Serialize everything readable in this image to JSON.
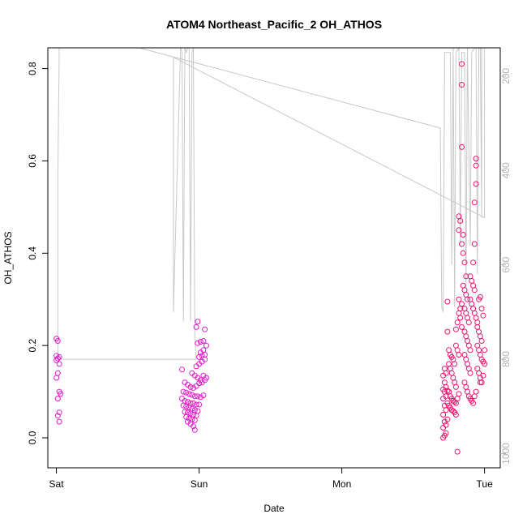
{
  "chart_data": {
    "type": "scatter",
    "title": "ATOM4 Northeast_Pacific_2 OH_ATHOS",
    "xlabel": "Date",
    "ylabel": "OH_ATHOS",
    "x_axis": {
      "range_days": [
        -0.06,
        3.11
      ],
      "ticks": [
        {
          "label": "Sat",
          "day": 0
        },
        {
          "label": "Sun",
          "day": 1
        },
        {
          "label": "Mon",
          "day": 2
        },
        {
          "label": "Tue",
          "day": 3
        }
      ]
    },
    "y_axis": {
      "range": [
        -0.065,
        0.845
      ],
      "ticks": [
        "0.0",
        "0.2",
        "0.4",
        "0.6",
        "0.8"
      ],
      "tick_values": [
        0,
        0.2,
        0.4,
        0.6,
        0.8
      ]
    },
    "right_axis": {
      "label": "",
      "range_top_to_bottom": [
        140,
        1030
      ],
      "ticks": [
        "200",
        "400",
        "600",
        "800",
        "1000"
      ],
      "tick_values": [
        200,
        400,
        600,
        800,
        1000
      ],
      "color": "#b3b3b3"
    },
    "grid": false,
    "legend": "none",
    "colors": {
      "low_altitude": "#e619c8",
      "high_altitude": "#f0146e",
      "pressure_line": "#c8c8c8",
      "axis": "#000000"
    },
    "series": [
      {
        "points_day_value": [
          [
            0.0,
            0.215
          ],
          [
            0.01,
            0.21
          ],
          [
            0.0,
            0.178
          ],
          [
            0.02,
            0.175
          ],
          [
            0.01,
            0.172
          ],
          [
            0.0,
            0.168
          ],
          [
            0.02,
            0.16
          ],
          [
            0.01,
            0.14
          ],
          [
            0.0,
            0.13
          ],
          [
            0.02,
            0.1
          ],
          [
            0.03,
            0.095
          ],
          [
            0.01,
            0.085
          ],
          [
            0.02,
            0.055
          ],
          [
            0.01,
            0.048
          ],
          [
            0.02,
            0.035
          ],
          [
            0.88,
            0.148
          ],
          [
            0.9,
            0.12
          ],
          [
            0.92,
            0.115
          ],
          [
            0.94,
            0.11
          ],
          [
            0.96,
            0.108
          ],
          [
            0.98,
            0.112
          ],
          [
            1.0,
            0.118
          ],
          [
            1.02,
            0.12
          ],
          [
            1.04,
            0.125
          ],
          [
            0.89,
            0.1
          ],
          [
            0.91,
            0.098
          ],
          [
            0.93,
            0.095
          ],
          [
            0.95,
            0.093
          ],
          [
            0.97,
            0.09
          ],
          [
            0.99,
            0.09
          ],
          [
            1.01,
            0.088
          ],
          [
            1.03,
            0.092
          ],
          [
            0.88,
            0.085
          ],
          [
            0.9,
            0.08
          ],
          [
            0.92,
            0.078
          ],
          [
            0.94,
            0.075
          ],
          [
            0.96,
            0.075
          ],
          [
            0.98,
            0.072
          ],
          [
            1.0,
            0.072
          ],
          [
            0.89,
            0.07
          ],
          [
            0.91,
            0.068
          ],
          [
            0.93,
            0.066
          ],
          [
            0.95,
            0.063
          ],
          [
            0.97,
            0.06
          ],
          [
            0.99,
            0.058
          ],
          [
            0.9,
            0.056
          ],
          [
            0.92,
            0.055
          ],
          [
            0.94,
            0.053
          ],
          [
            0.96,
            0.05
          ],
          [
            0.98,
            0.048
          ],
          [
            0.91,
            0.045
          ],
          [
            0.93,
            0.042
          ],
          [
            0.95,
            0.04
          ],
          [
            0.97,
            0.038
          ],
          [
            0.92,
            0.035
          ],
          [
            0.94,
            0.03
          ],
          [
            0.96,
            0.025
          ],
          [
            0.97,
            0.017
          ],
          [
            0.95,
            0.14
          ],
          [
            0.97,
            0.135
          ],
          [
            0.99,
            0.13
          ],
          [
            1.01,
            0.125
          ],
          [
            1.03,
            0.135
          ],
          [
            1.05,
            0.13
          ],
          [
            0.98,
            0.155
          ],
          [
            1.0,
            0.16
          ],
          [
            1.02,
            0.165
          ],
          [
            1.04,
            0.17
          ],
          [
            1.0,
            0.175
          ],
          [
            1.02,
            0.178
          ],
          [
            1.04,
            0.18
          ],
          [
            1.01,
            0.185
          ],
          [
            1.03,
            0.19
          ],
          [
            1.05,
            0.2
          ],
          [
            0.99,
            0.205
          ],
          [
            1.01,
            0.208
          ],
          [
            1.03,
            0.21
          ],
          [
            1.04,
            0.235
          ],
          [
            0.98,
            0.24
          ],
          [
            0.99,
            0.252
          ]
        ]
      },
      {
        "points_day_value": [
          [
            2.71,
            0.0
          ],
          [
            2.72,
            0.005
          ],
          [
            2.73,
            0.01
          ],
          [
            2.71,
            0.022
          ],
          [
            2.73,
            0.028
          ],
          [
            2.72,
            0.035
          ],
          [
            2.74,
            0.04
          ],
          [
            2.71,
            0.05
          ],
          [
            2.73,
            0.06
          ],
          [
            2.72,
            0.07
          ],
          [
            2.74,
            0.075
          ],
          [
            2.71,
            0.085
          ],
          [
            2.73,
            0.09
          ],
          [
            2.72,
            0.1
          ],
          [
            2.74,
            0.102
          ],
          [
            2.71,
            0.105
          ],
          [
            2.73,
            0.11
          ],
          [
            2.72,
            0.12
          ],
          [
            2.71,
            0.135
          ],
          [
            2.73,
            0.14
          ],
          [
            2.72,
            0.15
          ],
          [
            2.75,
            0.16
          ],
          [
            2.76,
            0.15
          ],
          [
            2.77,
            0.14
          ],
          [
            2.78,
            0.13
          ],
          [
            2.79,
            0.12
          ],
          [
            2.8,
            0.11
          ],
          [
            2.75,
            0.1
          ],
          [
            2.76,
            0.09
          ],
          [
            2.77,
            0.085
          ],
          [
            2.78,
            0.08
          ],
          [
            2.79,
            0.078
          ],
          [
            2.8,
            0.075
          ],
          [
            2.81,
            0.085
          ],
          [
            2.82,
            0.095
          ],
          [
            2.75,
            0.07
          ],
          [
            2.76,
            0.065
          ],
          [
            2.77,
            0.06
          ],
          [
            2.78,
            0.058
          ],
          [
            2.79,
            0.055
          ],
          [
            2.8,
            0.05
          ],
          [
            2.81,
            -0.03
          ],
          [
            2.74,
            0.23
          ],
          [
            2.75,
            0.19
          ],
          [
            2.76,
            0.18
          ],
          [
            2.77,
            0.175
          ],
          [
            2.78,
            0.17
          ],
          [
            2.79,
            0.16
          ],
          [
            2.8,
            0.2
          ],
          [
            2.81,
            0.19
          ],
          [
            2.82,
            0.18
          ],
          [
            2.74,
            0.295
          ],
          [
            2.8,
            0.235
          ],
          [
            2.81,
            0.25
          ],
          [
            2.82,
            0.27
          ],
          [
            2.83,
            0.26
          ],
          [
            2.84,
            0.24
          ],
          [
            2.82,
            0.3
          ],
          [
            2.83,
            0.28
          ],
          [
            2.84,
            0.29
          ],
          [
            2.82,
            0.48
          ],
          [
            2.83,
            0.47
          ],
          [
            2.82,
            0.45
          ],
          [
            2.84,
            0.42
          ],
          [
            2.85,
            0.44
          ],
          [
            2.85,
            0.4
          ],
          [
            2.84,
            0.63
          ],
          [
            2.84,
            0.765
          ],
          [
            2.84,
            0.81
          ],
          [
            2.86,
            0.38
          ],
          [
            2.87,
            0.35
          ],
          [
            2.85,
            0.33
          ],
          [
            2.86,
            0.32
          ],
          [
            2.87,
            0.31
          ],
          [
            2.88,
            0.3
          ],
          [
            2.86,
            0.28
          ],
          [
            2.87,
            0.27
          ],
          [
            2.88,
            0.26
          ],
          [
            2.89,
            0.25
          ],
          [
            2.86,
            0.23
          ],
          [
            2.87,
            0.22
          ],
          [
            2.88,
            0.21
          ],
          [
            2.89,
            0.2
          ],
          [
            2.9,
            0.19
          ],
          [
            2.86,
            0.18
          ],
          [
            2.87,
            0.17
          ],
          [
            2.88,
            0.16
          ],
          [
            2.89,
            0.15
          ],
          [
            2.9,
            0.14
          ],
          [
            2.86,
            0.12
          ],
          [
            2.87,
            0.11
          ],
          [
            2.88,
            0.1
          ],
          [
            2.89,
            0.09
          ],
          [
            2.9,
            0.085
          ],
          [
            2.91,
            0.08
          ],
          [
            2.92,
            0.075
          ],
          [
            2.93,
            0.09
          ],
          [
            2.94,
            0.1
          ],
          [
            2.9,
            0.3
          ],
          [
            2.91,
            0.29
          ],
          [
            2.92,
            0.28
          ],
          [
            2.93,
            0.27
          ],
          [
            2.94,
            0.26
          ],
          [
            2.95,
            0.25
          ],
          [
            2.9,
            0.35
          ],
          [
            2.91,
            0.34
          ],
          [
            2.92,
            0.33
          ],
          [
            2.93,
            0.32
          ],
          [
            2.92,
            0.38
          ],
          [
            2.93,
            0.42
          ],
          [
            2.93,
            0.51
          ],
          [
            2.94,
            0.55
          ],
          [
            2.94,
            0.59
          ],
          [
            2.94,
            0.605
          ],
          [
            2.95,
            0.24
          ],
          [
            2.96,
            0.23
          ],
          [
            2.97,
            0.22
          ],
          [
            2.98,
            0.21
          ],
          [
            2.95,
            0.2
          ],
          [
            2.96,
            0.19
          ],
          [
            2.97,
            0.18
          ],
          [
            2.98,
            0.17
          ],
          [
            2.99,
            0.165
          ],
          [
            3.0,
            0.16
          ],
          [
            2.95,
            0.15
          ],
          [
            2.96,
            0.14
          ],
          [
            2.97,
            0.13
          ],
          [
            2.98,
            0.12
          ],
          [
            2.96,
            0.3
          ],
          [
            2.97,
            0.305
          ],
          [
            2.98,
            0.28
          ],
          [
            2.99,
            0.265
          ],
          [
            3.0,
            0.19
          ],
          [
            2.99,
            0.135
          ],
          [
            2.97,
            0.12
          ]
        ]
      }
    ],
    "pressure_line_day_hpa": [
      [
        0.01,
        770
      ],
      [
        0.01,
        420
      ],
      [
        0.02,
        140
      ],
      [
        0.58,
        140
      ],
      [
        2.69,
        310
      ],
      [
        2.7,
        690
      ],
      [
        2.71,
        700
      ],
      [
        2.72,
        150
      ],
      [
        2.74,
        150
      ],
      [
        2.76,
        150
      ],
      [
        2.77,
        600
      ],
      [
        2.78,
        140
      ],
      [
        2.79,
        690
      ],
      [
        2.8,
        150
      ],
      [
        2.82,
        140
      ],
      [
        2.83,
        560
      ],
      [
        2.84,
        150
      ],
      [
        2.86,
        150
      ],
      [
        2.87,
        650
      ],
      [
        2.88,
        140
      ],
      [
        2.9,
        560
      ],
      [
        2.91,
        150
      ],
      [
        2.93,
        140
      ],
      [
        2.94,
        140
      ],
      [
        2.95,
        620
      ],
      [
        2.96,
        140
      ],
      [
        2.97,
        140
      ],
      [
        2.98,
        500
      ],
      [
        2.98,
        140
      ],
      [
        3.0,
        140
      ],
      [
        3.0,
        500
      ],
      [
        0.82,
        160
      ],
      [
        0.82,
        700
      ],
      [
        0.87,
        140
      ],
      [
        0.88,
        150
      ],
      [
        0.89,
        720
      ],
      [
        0.9,
        140
      ],
      [
        0.91,
        150
      ],
      [
        0.92,
        140
      ],
      [
        0.93,
        140
      ],
      [
        0.94,
        720
      ],
      [
        0.95,
        150
      ],
      [
        0.96,
        140
      ],
      [
        0.97,
        760
      ],
      [
        0.98,
        800
      ],
      [
        0.01,
        800
      ],
      [
        0.01,
        770
      ]
    ]
  }
}
